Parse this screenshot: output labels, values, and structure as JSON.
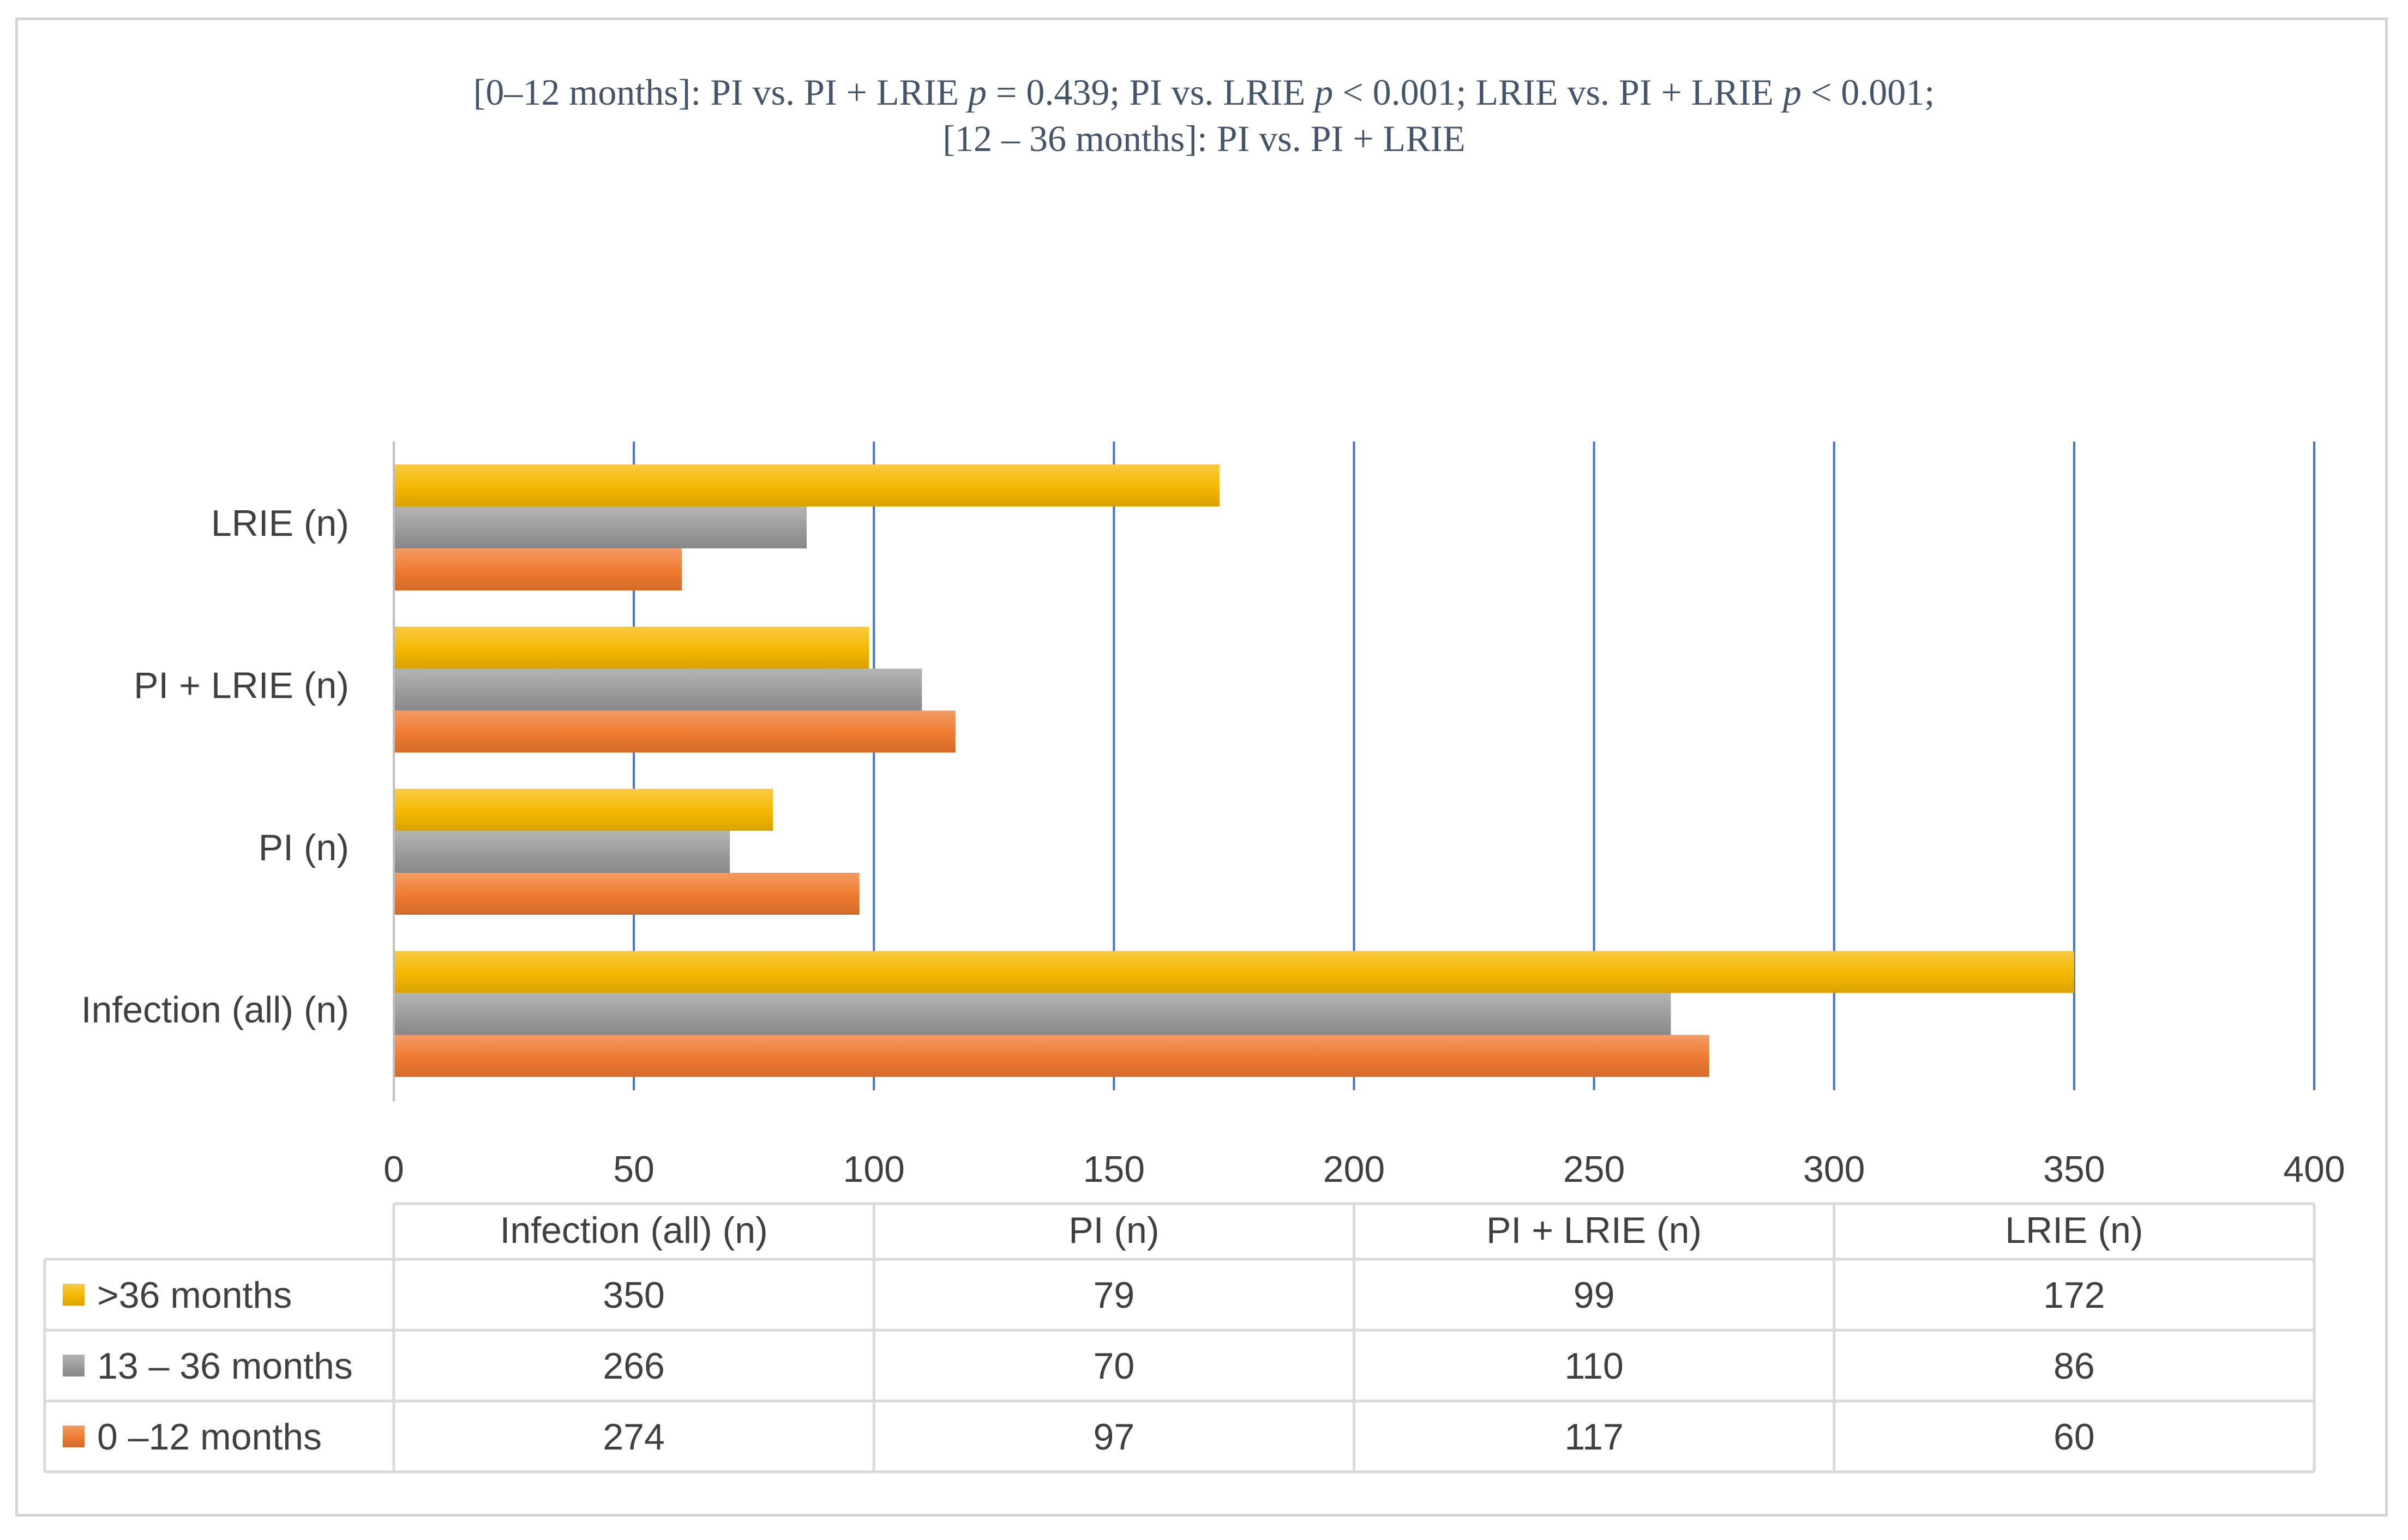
{
  "chart_data": {
    "type": "bar",
    "orientation": "horizontal",
    "title": [
      {
        "text": "[0–12 months]: PI vs. PI + LRIE ",
        "italic": false
      },
      {
        "text": "p",
        "italic": true
      },
      {
        "text": " = 0.439; PI vs. LRIE ",
        "italic": false
      },
      {
        "text": "p",
        "italic": true
      },
      {
        "text": " < 0.001; LRIE vs. PI + LRIE ",
        "italic": false
      },
      {
        "text": "p",
        "italic": true
      },
      {
        "text": " < 0.001;",
        "italic": false
      }
    ],
    "subtitle": "[12 – 36 months]: PI vs. PI + LRIE",
    "categories": [
      "Infection (all) (n)",
      "PI (n)",
      "PI + LRIE (n)",
      "LRIE (n)"
    ],
    "series": [
      {
        "name": ">36 months",
        "values": [
          350,
          79,
          99,
          172
        ],
        "color": "#f5b800"
      },
      {
        "name": "13 – 36 months",
        "values": [
          266,
          70,
          110,
          86
        ],
        "color": "#9b9b9b"
      },
      {
        "name": "0 –12 months",
        "values": [
          274,
          97,
          117,
          60
        ],
        "color": "#ef7a30"
      }
    ],
    "xlim": [
      0,
      400
    ],
    "xticks": [
      0,
      50,
      100,
      150,
      200,
      250,
      300,
      350,
      400
    ],
    "grid": "vertical",
    "grid_color": "#4472c4",
    "legend": "data-table"
  }
}
